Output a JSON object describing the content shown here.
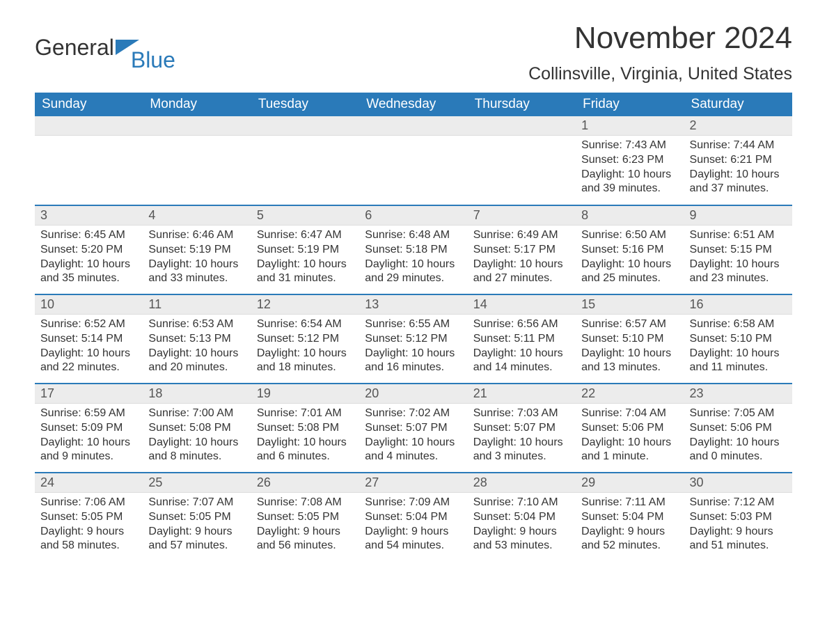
{
  "brand": {
    "part1": "General",
    "part2": "Blue"
  },
  "title": "November 2024",
  "location": "Collinsville, Virginia, United States",
  "colors": {
    "header_bg": "#2a7ab9",
    "header_text": "#ffffff",
    "daynum_bg": "#ececec",
    "row_divider": "#2a7ab9",
    "body_text": "#333333",
    "page_bg": "#ffffff"
  },
  "day_headers": [
    "Sunday",
    "Monday",
    "Tuesday",
    "Wednesday",
    "Thursday",
    "Friday",
    "Saturday"
  ],
  "weeks": [
    [
      null,
      null,
      null,
      null,
      null,
      {
        "n": "1",
        "sunrise": "7:43 AM",
        "sunset": "6:23 PM",
        "daylight": "10 hours and 39 minutes."
      },
      {
        "n": "2",
        "sunrise": "7:44 AM",
        "sunset": "6:21 PM",
        "daylight": "10 hours and 37 minutes."
      }
    ],
    [
      {
        "n": "3",
        "sunrise": "6:45 AM",
        "sunset": "5:20 PM",
        "daylight": "10 hours and 35 minutes."
      },
      {
        "n": "4",
        "sunrise": "6:46 AM",
        "sunset": "5:19 PM",
        "daylight": "10 hours and 33 minutes."
      },
      {
        "n": "5",
        "sunrise": "6:47 AM",
        "sunset": "5:19 PM",
        "daylight": "10 hours and 31 minutes."
      },
      {
        "n": "6",
        "sunrise": "6:48 AM",
        "sunset": "5:18 PM",
        "daylight": "10 hours and 29 minutes."
      },
      {
        "n": "7",
        "sunrise": "6:49 AM",
        "sunset": "5:17 PM",
        "daylight": "10 hours and 27 minutes."
      },
      {
        "n": "8",
        "sunrise": "6:50 AM",
        "sunset": "5:16 PM",
        "daylight": "10 hours and 25 minutes."
      },
      {
        "n": "9",
        "sunrise": "6:51 AM",
        "sunset": "5:15 PM",
        "daylight": "10 hours and 23 minutes."
      }
    ],
    [
      {
        "n": "10",
        "sunrise": "6:52 AM",
        "sunset": "5:14 PM",
        "daylight": "10 hours and 22 minutes."
      },
      {
        "n": "11",
        "sunrise": "6:53 AM",
        "sunset": "5:13 PM",
        "daylight": "10 hours and 20 minutes."
      },
      {
        "n": "12",
        "sunrise": "6:54 AM",
        "sunset": "5:12 PM",
        "daylight": "10 hours and 18 minutes."
      },
      {
        "n": "13",
        "sunrise": "6:55 AM",
        "sunset": "5:12 PM",
        "daylight": "10 hours and 16 minutes."
      },
      {
        "n": "14",
        "sunrise": "6:56 AM",
        "sunset": "5:11 PM",
        "daylight": "10 hours and 14 minutes."
      },
      {
        "n": "15",
        "sunrise": "6:57 AM",
        "sunset": "5:10 PM",
        "daylight": "10 hours and 13 minutes."
      },
      {
        "n": "16",
        "sunrise": "6:58 AM",
        "sunset": "5:10 PM",
        "daylight": "10 hours and 11 minutes."
      }
    ],
    [
      {
        "n": "17",
        "sunrise": "6:59 AM",
        "sunset": "5:09 PM",
        "daylight": "10 hours and 9 minutes."
      },
      {
        "n": "18",
        "sunrise": "7:00 AM",
        "sunset": "5:08 PM",
        "daylight": "10 hours and 8 minutes."
      },
      {
        "n": "19",
        "sunrise": "7:01 AM",
        "sunset": "5:08 PM",
        "daylight": "10 hours and 6 minutes."
      },
      {
        "n": "20",
        "sunrise": "7:02 AM",
        "sunset": "5:07 PM",
        "daylight": "10 hours and 4 minutes."
      },
      {
        "n": "21",
        "sunrise": "7:03 AM",
        "sunset": "5:07 PM",
        "daylight": "10 hours and 3 minutes."
      },
      {
        "n": "22",
        "sunrise": "7:04 AM",
        "sunset": "5:06 PM",
        "daylight": "10 hours and 1 minute."
      },
      {
        "n": "23",
        "sunrise": "7:05 AM",
        "sunset": "5:06 PM",
        "daylight": "10 hours and 0 minutes."
      }
    ],
    [
      {
        "n": "24",
        "sunrise": "7:06 AM",
        "sunset": "5:05 PM",
        "daylight": "9 hours and 58 minutes."
      },
      {
        "n": "25",
        "sunrise": "7:07 AM",
        "sunset": "5:05 PM",
        "daylight": "9 hours and 57 minutes."
      },
      {
        "n": "26",
        "sunrise": "7:08 AM",
        "sunset": "5:05 PM",
        "daylight": "9 hours and 56 minutes."
      },
      {
        "n": "27",
        "sunrise": "7:09 AM",
        "sunset": "5:04 PM",
        "daylight": "9 hours and 54 minutes."
      },
      {
        "n": "28",
        "sunrise": "7:10 AM",
        "sunset": "5:04 PM",
        "daylight": "9 hours and 53 minutes."
      },
      {
        "n": "29",
        "sunrise": "7:11 AM",
        "sunset": "5:04 PM",
        "daylight": "9 hours and 52 minutes."
      },
      {
        "n": "30",
        "sunrise": "7:12 AM",
        "sunset": "5:03 PM",
        "daylight": "9 hours and 51 minutes."
      }
    ]
  ],
  "labels": {
    "sunrise": "Sunrise: ",
    "sunset": "Sunset: ",
    "daylight": "Daylight: "
  }
}
